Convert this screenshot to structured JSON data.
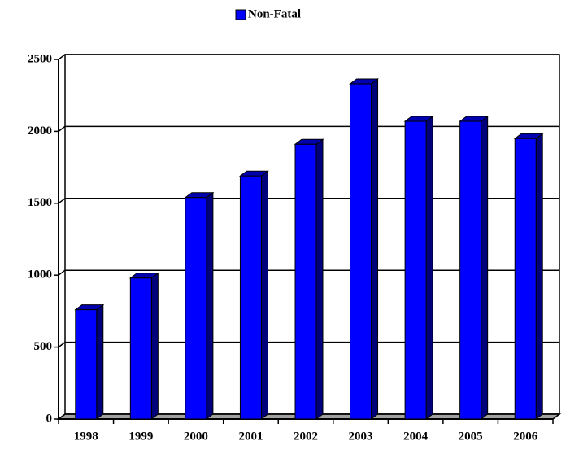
{
  "chart_data": {
    "type": "bar3d",
    "categories": [
      "1998",
      "1999",
      "2000",
      "2001",
      "2002",
      "2003",
      "2004",
      "2005",
      "2006"
    ],
    "series": [
      {
        "name": "Non-Fatal",
        "color": "#0000ff",
        "values": [
          760,
          980,
          1540,
          1690,
          1910,
          2330,
          2070,
          2070,
          1950
        ]
      }
    ],
    "ylim": [
      0,
      2500
    ],
    "yticks": [
      0,
      500,
      1000,
      1500,
      2000,
      2500
    ],
    "grid": true,
    "legend": "top"
  }
}
